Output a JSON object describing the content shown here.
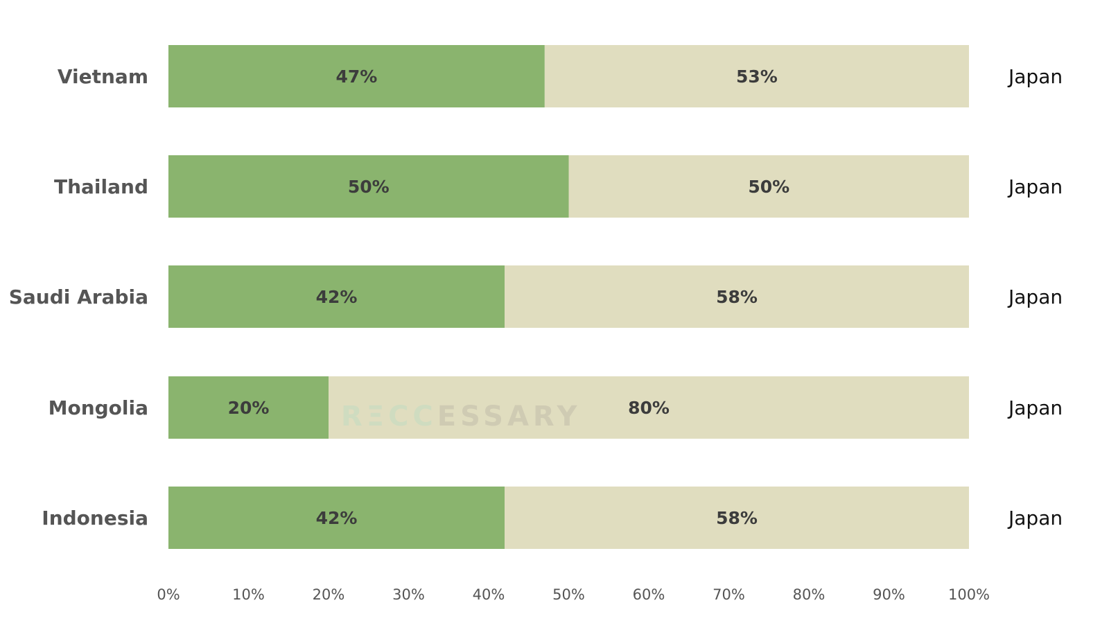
{
  "chart_data": {
    "type": "bar",
    "orientation": "horizontal",
    "stacked": true,
    "categories": [
      "Vietnam",
      "Thailand",
      "Saudi Arabia",
      "Mongolia",
      "Indonesia"
    ],
    "series": [
      {
        "values": [
          47,
          50,
          42,
          20,
          42
        ],
        "color": "#8ab46e"
      },
      {
        "values": [
          53,
          50,
          58,
          80,
          58
        ],
        "color": "#e0ddbf"
      }
    ],
    "data_labels": [
      [
        "47%",
        "53%"
      ],
      [
        "50%",
        "50%"
      ],
      [
        "42%",
        "58%"
      ],
      [
        "20%",
        "80%"
      ],
      [
        "42%",
        "58%"
      ]
    ],
    "right_labels": [
      "Japan",
      "Japan",
      "Japan",
      "Japan",
      "Japan"
    ],
    "x_ticks": [
      "0%",
      "10%",
      "20%",
      "30%",
      "40%",
      "50%",
      "60%",
      "70%",
      "80%",
      "90%",
      "100%"
    ],
    "xlim": [
      0,
      100
    ],
    "grid": false,
    "legend": "none",
    "title": "",
    "xlabel": "",
    "ylabel": "",
    "watermark": {
      "prefix": "RΞCC",
      "suffix": "ESSARY"
    }
  }
}
